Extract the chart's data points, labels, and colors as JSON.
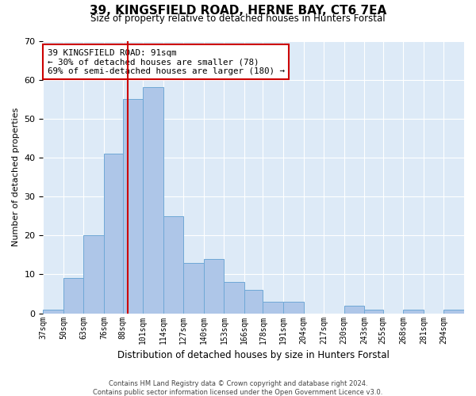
{
  "title": "39, KINGSFIELD ROAD, HERNE BAY, CT6 7EA",
  "subtitle": "Size of property relative to detached houses in Hunters Forstal",
  "xlabel": "Distribution of detached houses by size in Hunters Forstal",
  "ylabel": "Number of detached properties",
  "bin_labels": [
    "37sqm",
    "50sqm",
    "63sqm",
    "76sqm",
    "88sqm",
    "101sqm",
    "114sqm",
    "127sqm",
    "140sqm",
    "153sqm",
    "166sqm",
    "178sqm",
    "191sqm",
    "204sqm",
    "217sqm",
    "230sqm",
    "243sqm",
    "255sqm",
    "268sqm",
    "281sqm",
    "294sqm"
  ],
  "bin_edges": [
    37,
    50,
    63,
    76,
    88,
    101,
    114,
    127,
    140,
    153,
    166,
    178,
    191,
    204,
    217,
    230,
    243,
    255,
    268,
    281,
    294
  ],
  "bar_heights": [
    1,
    9,
    20,
    41,
    55,
    58,
    25,
    13,
    14,
    8,
    6,
    3,
    3,
    0,
    0,
    2,
    1,
    0,
    1,
    0,
    1
  ],
  "bar_color": "#aec6e8",
  "bar_edge_color": "#6fa8d6",
  "property_value": 91,
  "vline_color": "#cc0000",
  "annotation_line1": "39 KINGSFIELD ROAD: 91sqm",
  "annotation_line2": "← 30% of detached houses are smaller (78)",
  "annotation_line3": "69% of semi-detached houses are larger (180) →",
  "annotation_box_color": "#ffffff",
  "annotation_box_edge_color": "#cc0000",
  "ylim": [
    0,
    70
  ],
  "yticks": [
    0,
    10,
    20,
    30,
    40,
    50,
    60,
    70
  ],
  "footnote": "Contains HM Land Registry data © Crown copyright and database right 2024.\nContains public sector information licensed under the Open Government Licence v3.0.",
  "bg_color": "#ddeaf7"
}
